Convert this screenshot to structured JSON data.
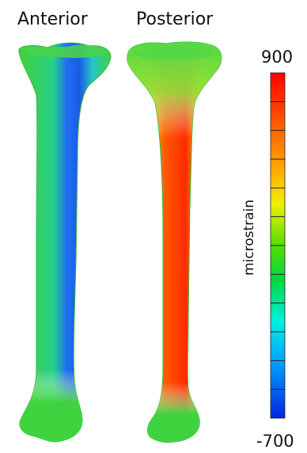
{
  "labels": {
    "anterior": "Anterior",
    "posterior": "Posterior"
  },
  "colorbar": {
    "max_label": "900",
    "min_label": "-700",
    "unit": "microstrain",
    "min": -700,
    "max": 900,
    "tick_count": 11,
    "stops": [
      "#ff0000",
      "#ff6a00",
      "#ffb000",
      "#e6f000",
      "#5fd800",
      "#00d640",
      "#00f0e0",
      "#00aaff",
      "#0033e0"
    ]
  },
  "colors": {
    "bone_green": "#3fd43f",
    "anterior_strip": "#1a5cf0",
    "posterior_strip": "#ff3a00"
  }
}
